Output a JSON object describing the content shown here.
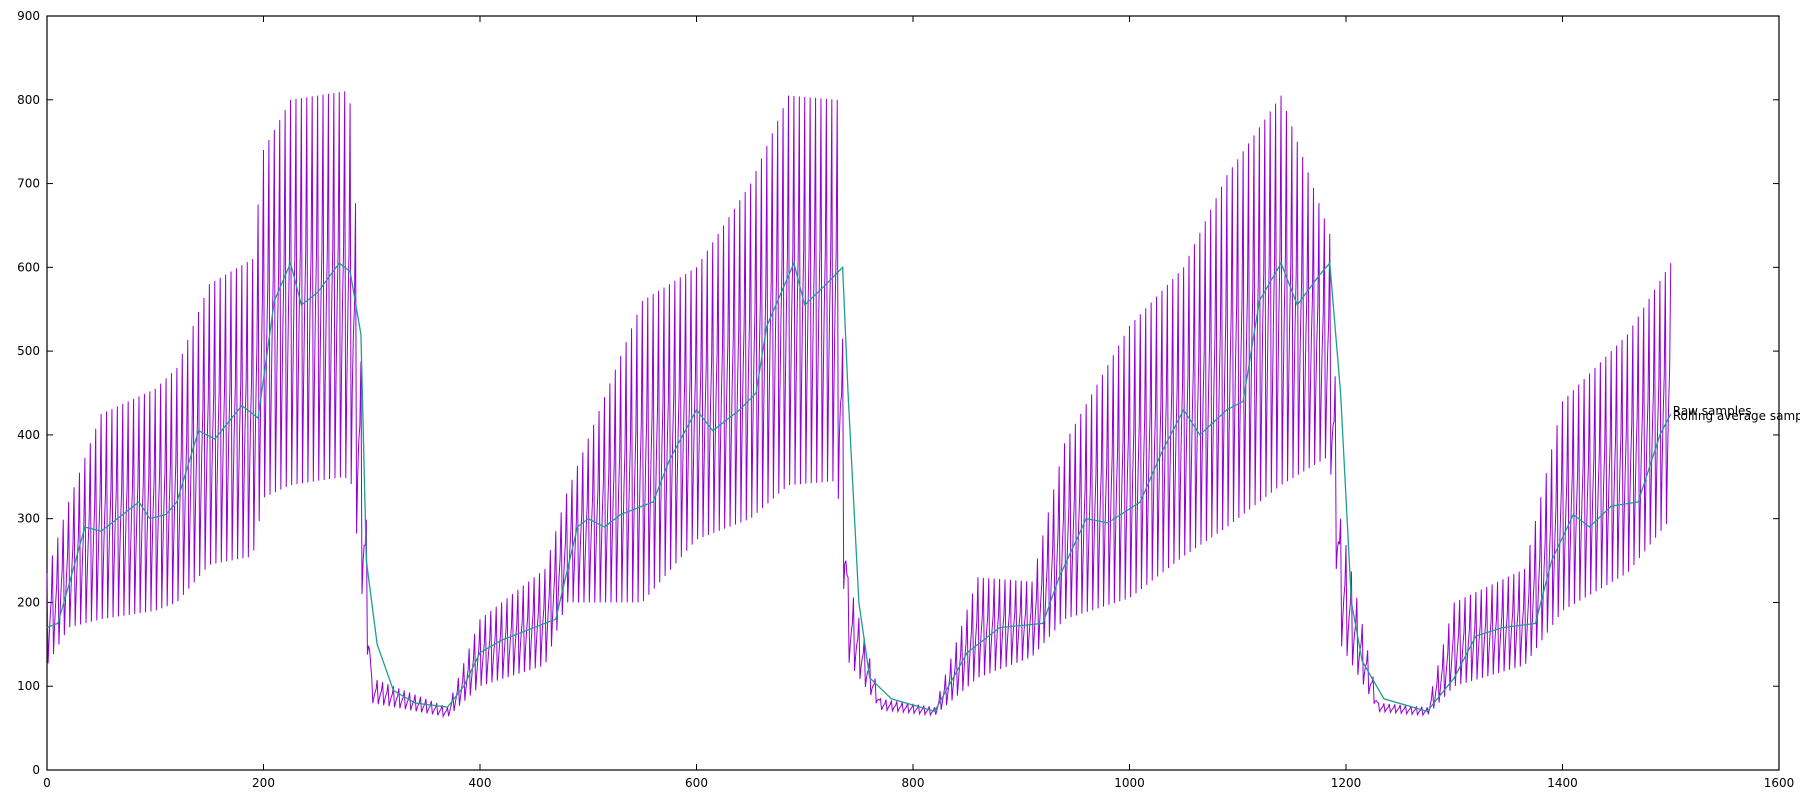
{
  "chart_data": {
    "type": "line",
    "xlim": [
      0,
      1600
    ],
    "ylim": [
      0,
      900
    ],
    "x_ticks": [
      "0",
      "200",
      "400",
      "600",
      "800",
      "1000",
      "1200",
      "1400",
      "1600"
    ],
    "y_ticks": [
      "0",
      "100",
      "200",
      "300",
      "400",
      "500",
      "600",
      "700",
      "800",
      "900"
    ],
    "grid": false,
    "legend_placement": "inline at right end of series",
    "series": [
      {
        "name": "Raw samples",
        "color": "#9400d3",
        "x_range": [
          0,
          1500
        ],
        "sample_step": 1,
        "envelope_points": [
          {
            "x": 0,
            "low": 125,
            "high": 235
          },
          {
            "x": 20,
            "low": 170,
            "high": 320
          },
          {
            "x": 50,
            "low": 180,
            "high": 425
          },
          {
            "x": 100,
            "low": 190,
            "high": 455
          },
          {
            "x": 120,
            "low": 200,
            "high": 480
          },
          {
            "x": 150,
            "low": 245,
            "high": 580
          },
          {
            "x": 190,
            "low": 255,
            "high": 610
          },
          {
            "x": 200,
            "low": 325,
            "high": 740
          },
          {
            "x": 225,
            "low": 340,
            "high": 800
          },
          {
            "x": 275,
            "low": 350,
            "high": 810
          },
          {
            "x": 282,
            "low": 340,
            "high": 790
          },
          {
            "x": 300,
            "low": 80,
            "high": 110
          },
          {
            "x": 370,
            "low": 63,
            "high": 75
          },
          {
            "x": 400,
            "low": 100,
            "high": 180
          },
          {
            "x": 460,
            "low": 125,
            "high": 240
          },
          {
            "x": 480,
            "low": 200,
            "high": 330
          },
          {
            "x": 550,
            "low": 200,
            "high": 560
          },
          {
            "x": 600,
            "low": 275,
            "high": 600
          },
          {
            "x": 650,
            "low": 300,
            "high": 700
          },
          {
            "x": 685,
            "low": 340,
            "high": 805
          },
          {
            "x": 730,
            "low": 345,
            "high": 800
          },
          {
            "x": 740,
            "low": 130,
            "high": 230
          },
          {
            "x": 770,
            "low": 72,
            "high": 85
          },
          {
            "x": 820,
            "low": 65,
            "high": 75
          },
          {
            "x": 860,
            "low": 110,
            "high": 230
          },
          {
            "x": 910,
            "low": 135,
            "high": 225
          },
          {
            "x": 940,
            "low": 180,
            "high": 390
          },
          {
            "x": 1000,
            "low": 205,
            "high": 530
          },
          {
            "x": 1050,
            "low": 255,
            "high": 600
          },
          {
            "x": 1090,
            "low": 290,
            "high": 710
          },
          {
            "x": 1140,
            "low": 340,
            "high": 805
          },
          {
            "x": 1185,
            "low": 375,
            "high": 640
          },
          {
            "x": 1195,
            "low": 150,
            "high": 300
          },
          {
            "x": 1230,
            "low": 70,
            "high": 80
          },
          {
            "x": 1275,
            "low": 65,
            "high": 75
          },
          {
            "x": 1300,
            "low": 100,
            "high": 200
          },
          {
            "x": 1365,
            "low": 125,
            "high": 240
          },
          {
            "x": 1400,
            "low": 190,
            "high": 440
          },
          {
            "x": 1460,
            "low": 235,
            "high": 520
          },
          {
            "x": 1500,
            "low": 300,
            "high": 605
          }
        ]
      },
      {
        "name": "Rolling average samples",
        "color": "#1e9f8c",
        "x_range": [
          0,
          1500
        ],
        "points": [
          [
            0,
            170
          ],
          [
            10,
            175
          ],
          [
            20,
            220
          ],
          [
            35,
            290
          ],
          [
            50,
            285
          ],
          [
            70,
            305
          ],
          [
            85,
            320
          ],
          [
            95,
            300
          ],
          [
            110,
            305
          ],
          [
            120,
            320
          ],
          [
            140,
            405
          ],
          [
            155,
            395
          ],
          [
            180,
            435
          ],
          [
            195,
            420
          ],
          [
            210,
            560
          ],
          [
            225,
            605
          ],
          [
            235,
            555
          ],
          [
            250,
            570
          ],
          [
            270,
            605
          ],
          [
            280,
            595
          ],
          [
            290,
            520
          ],
          [
            295,
            250
          ],
          [
            305,
            150
          ],
          [
            320,
            95
          ],
          [
            340,
            80
          ],
          [
            370,
            75
          ],
          [
            385,
            100
          ],
          [
            400,
            140
          ],
          [
            420,
            155
          ],
          [
            450,
            170
          ],
          [
            470,
            180
          ],
          [
            490,
            290
          ],
          [
            500,
            300
          ],
          [
            515,
            290
          ],
          [
            530,
            305
          ],
          [
            560,
            320
          ],
          [
            575,
            370
          ],
          [
            600,
            430
          ],
          [
            615,
            405
          ],
          [
            640,
            430
          ],
          [
            655,
            450
          ],
          [
            665,
            530
          ],
          [
            690,
            605
          ],
          [
            700,
            555
          ],
          [
            720,
            580
          ],
          [
            735,
            600
          ],
          [
            740,
            450
          ],
          [
            750,
            200
          ],
          [
            760,
            110
          ],
          [
            780,
            85
          ],
          [
            820,
            70
          ],
          [
            850,
            140
          ],
          [
            880,
            170
          ],
          [
            920,
            175
          ],
          [
            935,
            230
          ],
          [
            960,
            300
          ],
          [
            980,
            295
          ],
          [
            1010,
            320
          ],
          [
            1030,
            380
          ],
          [
            1050,
            430
          ],
          [
            1065,
            400
          ],
          [
            1090,
            430
          ],
          [
            1105,
            440
          ],
          [
            1120,
            560
          ],
          [
            1140,
            605
          ],
          [
            1155,
            555
          ],
          [
            1175,
            590
          ],
          [
            1185,
            605
          ],
          [
            1195,
            450
          ],
          [
            1205,
            200
          ],
          [
            1215,
            130
          ],
          [
            1235,
            85
          ],
          [
            1275,
            70
          ],
          [
            1300,
            110
          ],
          [
            1320,
            160
          ],
          [
            1345,
            170
          ],
          [
            1375,
            175
          ],
          [
            1390,
            250
          ],
          [
            1410,
            305
          ],
          [
            1425,
            290
          ],
          [
            1445,
            315
          ],
          [
            1470,
            320
          ],
          [
            1490,
            400
          ],
          [
            1500,
            425
          ]
        ]
      }
    ]
  }
}
